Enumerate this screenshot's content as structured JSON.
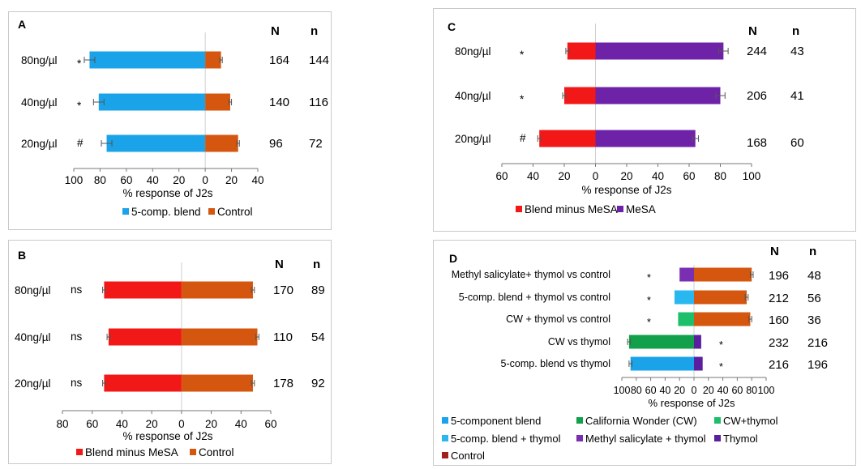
{
  "colors": {
    "blend": "#1aa3e8",
    "control": "#d4560f",
    "blend_minus_mesa": "#f21818",
    "mesa": "#6e22a8",
    "cw": "#12a14a",
    "cw_thymol": "#1dbf6a",
    "blend_thymol": "#29b7ef",
    "mesa_thymol": "#7a2fb2",
    "thymol": "#5a1f9e",
    "control_d": "#a0211c"
  },
  "chart_data": [
    {
      "id": "A",
      "panel_letter": "A",
      "type": "bar",
      "orientation": "horizontal",
      "categories": [
        "80ng/µl",
        "40ng/µl",
        "20ng/µl"
      ],
      "markers": [
        "*",
        "*",
        "#"
      ],
      "series": [
        {
          "name": "5-comp. blend",
          "values": [
            88,
            81,
            75
          ],
          "errors": [
            4,
            4,
            4
          ],
          "color_key": "blend"
        },
        {
          "name": "Control",
          "values": [
            12,
            19,
            25
          ],
          "errors": [
            1,
            1,
            1
          ],
          "color_key": "control"
        }
      ],
      "N_header": "N",
      "n_header": "n",
      "N": [
        "164",
        "140",
        "96"
      ],
      "n": [
        "144",
        "116",
        "72"
      ],
      "xlabel": "% response of J2s",
      "xlim": [
        -100,
        40
      ],
      "tick_values": [
        -100,
        -80,
        -60,
        -40,
        -20,
        0,
        20,
        40
      ],
      "tick_labels": [
        "100",
        "80",
        "60",
        "40",
        "20",
        "0",
        "20",
        "40"
      ],
      "legend_position": "bottom"
    },
    {
      "id": "B",
      "panel_letter": "B",
      "type": "bar",
      "orientation": "horizontal",
      "categories": [
        "80ng/µl",
        "40ng/µl",
        "20ng/µl"
      ],
      "markers": [
        "ns",
        "ns",
        "ns"
      ],
      "series": [
        {
          "name": "Blend minus MeSA",
          "values": [
            52,
            49,
            52
          ],
          "errors": [
            1,
            1,
            1
          ],
          "color_key": "blend_minus_mesa"
        },
        {
          "name": "Control",
          "values": [
            48,
            51,
            48
          ],
          "errors": [
            1,
            1,
            1
          ],
          "color_key": "control"
        }
      ],
      "N_header": "N",
      "n_header": "n",
      "N": [
        "170",
        "110",
        "178"
      ],
      "n": [
        "89",
        "54",
        "92"
      ],
      "xlabel": "% response of J2s",
      "xlim": [
        -80,
        60
      ],
      "tick_values": [
        -80,
        -60,
        -40,
        -20,
        0,
        20,
        40,
        60
      ],
      "tick_labels": [
        "80",
        "60",
        "40",
        "20",
        "0",
        "20",
        "40",
        "60"
      ],
      "legend_position": "bottom"
    },
    {
      "id": "C",
      "panel_letter": "C",
      "type": "bar",
      "orientation": "horizontal",
      "categories": [
        "80ng/µl",
        "40ng/µl",
        "20ng/µl"
      ],
      "markers": [
        "*",
        "*",
        "#"
      ],
      "series": [
        {
          "name": "Blend minus MeSA",
          "values": [
            18,
            20,
            36
          ],
          "errors": [
            1,
            1,
            1
          ],
          "color_key": "blend_minus_mesa"
        },
        {
          "name": "MeSA",
          "values": [
            82,
            80,
            64
          ],
          "errors": [
            3,
            3,
            2
          ],
          "color_key": "mesa"
        }
      ],
      "N_header": "N",
      "n_header": "n",
      "N": [
        "244",
        "206",
        "168"
      ],
      "n": [
        "43",
        "41",
        "60"
      ],
      "xlabel": "% response of J2s",
      "xlim": [
        -60,
        100
      ],
      "tick_values": [
        -60,
        -40,
        -20,
        0,
        20,
        40,
        60,
        80,
        100
      ],
      "tick_labels": [
        "60",
        "40",
        "20",
        "0",
        "20",
        "40",
        "60",
        "80",
        "100"
      ],
      "legend_position": "bottom"
    },
    {
      "id": "D",
      "panel_letter": "D",
      "type": "bar",
      "orientation": "horizontal",
      "categories": [
        "Methyl salicylate+ thymol vs control",
        "5-comp. blend + thymol vs control",
        "CW + thymol vs control",
        "CW vs thymol",
        "5-comp. blend vs thymol"
      ],
      "markers": [
        "*",
        "*",
        "*",
        "*",
        "*"
      ],
      "marker_side": [
        "left",
        "left",
        "left",
        "right",
        "right"
      ],
      "left_values": [
        20,
        27,
        22,
        90,
        88
      ],
      "left_colors": [
        "mesa_thymol",
        "blend_thymol",
        "cw_thymol",
        "cw",
        "blend"
      ],
      "right_values": [
        80,
        73,
        78,
        10,
        12
      ],
      "right_colors": [
        "control",
        "control",
        "control",
        "thymol",
        "thymol"
      ],
      "errors": [
        2,
        2,
        2,
        2,
        2
      ],
      "N_header": "N",
      "n_header": "n",
      "N": [
        "196",
        "212",
        "160",
        "232",
        "216"
      ],
      "n": [
        "48",
        "56",
        "36",
        "216",
        "196"
      ],
      "xlabel": "% response of J2s",
      "xlim": [
        -100,
        100
      ],
      "tick_values": [
        -100,
        -80,
        -60,
        -40,
        -20,
        0,
        20,
        40,
        60,
        80,
        100
      ],
      "tick_labels": [
        "100",
        "80",
        "60",
        "40",
        "20",
        "0",
        "20",
        "40",
        "60",
        "80",
        "100"
      ],
      "legend": [
        {
          "name": "5-component blend",
          "color_key": "blend"
        },
        {
          "name": "California Wonder (CW)",
          "color_key": "cw"
        },
        {
          "name": "CW+thymol",
          "color_key": "cw_thymol"
        },
        {
          "name": "5-comp. blend + thymol",
          "color_key": "blend_thymol"
        },
        {
          "name": "Methyl salicylate + thymol",
          "color_key": "mesa_thymol"
        },
        {
          "name": "Thymol",
          "color_key": "thymol"
        },
        {
          "name": "Control",
          "color_key": "control_d"
        }
      ],
      "legend_position": "bottom"
    }
  ]
}
